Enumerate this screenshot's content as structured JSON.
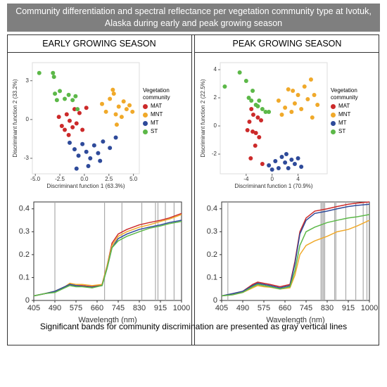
{
  "header": {
    "title": "Community differentiation and spectral reflectance per vegetation community type at Ivotuk, Alaska during early and peak growing season"
  },
  "footer": "Significant bands for community discrimination are presented as gray vertical lines",
  "chart_data": [
    {
      "type": "scatter",
      "title": "EARLY GROWING SEASON",
      "xlabel": "Discriminant function 1 (63.3%)",
      "ylabel": "Discriminant function 2 (33.2%)",
      "legend_title": "Vegetation community",
      "xlim": [
        -5.3,
        5.6
      ],
      "ylim": [
        -4.2,
        4.4
      ],
      "xticks": [
        {
          "value": -5,
          "label": "-5.0"
        },
        -2.5,
        {
          "value": 0,
          "label": "0.0"
        },
        2.5,
        {
          "value": 5,
          "label": "5.0"
        }
      ],
      "yticks": [
        -3,
        0,
        3
      ],
      "series": [
        {
          "name": "MAT",
          "color": "#cc2a2a",
          "x": [
            -2.6,
            -2.3,
            -2.0,
            -1.8,
            -1.5,
            -1.2,
            -1.0,
            -0.8,
            -0.5,
            -0.2,
            0.2,
            -1.6
          ],
          "y": [
            0.2,
            -0.5,
            -0.8,
            0.4,
            -0.1,
            -0.6,
            0.8,
            -0.3,
            0.5,
            -0.8,
            0.9,
            -1.2
          ]
        },
        {
          "name": "MNT",
          "color": "#f0a92a",
          "x": [
            1.8,
            2.2,
            2.6,
            3.0,
            3.2,
            3.5,
            3.8,
            4.0,
            4.3,
            4.6,
            4.9,
            2.9,
            3.3
          ],
          "y": [
            1.2,
            0.6,
            1.6,
            2.0,
            0.4,
            1.0,
            0.2,
            1.4,
            0.8,
            1.1,
            0.6,
            2.3,
            -0.4
          ]
        },
        {
          "name": "MT",
          "color": "#2e4a9a",
          "x": [
            -1.5,
            -1.0,
            -0.6,
            -0.2,
            0.2,
            0.6,
            1.0,
            1.4,
            1.9,
            2.6,
            3.2,
            -0.8,
            0.4,
            1.6
          ],
          "y": [
            -1.8,
            -2.3,
            -2.8,
            -1.9,
            -2.5,
            -3.0,
            -2.0,
            -2.6,
            -1.7,
            -2.2,
            -1.4,
            -3.8,
            -3.6,
            -3.2
          ]
        },
        {
          "name": "ST",
          "color": "#5cb848",
          "x": [
            -4.6,
            -3.2,
            -3.1,
            -3.0,
            -2.8,
            -2.5,
            -2.0,
            -1.6,
            -1.2,
            -0.9,
            -0.7
          ],
          "y": [
            3.6,
            3.6,
            3.3,
            2.0,
            1.5,
            2.2,
            1.6,
            1.9,
            1.5,
            1.8,
            0.8
          ]
        }
      ]
    },
    {
      "type": "scatter",
      "title": "PEAK GROWING SEASON",
      "xlabel": "Discriminant function 1 (70.9%)",
      "ylabel": "Discriminant function 2 (22.5%)",
      "legend_title": "Vegetation community",
      "xlim": [
        -8,
        8.5
      ],
      "ylim": [
        -3.4,
        4.5
      ],
      "xticks": [
        -4,
        0,
        4
      ],
      "yticks": [
        -2,
        0,
        2,
        4
      ],
      "series": [
        {
          "name": "MAT",
          "color": "#cc2a2a",
          "x": [
            -3.8,
            -3.5,
            -3.2,
            -2.9,
            -2.5,
            -2.2,
            -2.0,
            -1.7,
            -3.3,
            -2.6,
            -1.5,
            -3.0
          ],
          "y": [
            -0.3,
            0.3,
            1.2,
            0.8,
            -0.5,
            0.6,
            -0.8,
            0.4,
            -2.3,
            -1.4,
            -2.7,
            -0.4
          ]
        },
        {
          "name": "MNT",
          "color": "#f0a92a",
          "x": [
            1.0,
            1.5,
            2.0,
            2.5,
            3.0,
            3.5,
            4.0,
            4.5,
            5.0,
            5.5,
            6.0,
            6.5,
            7.0,
            3.2,
            6.2
          ],
          "y": [
            1.8,
            0.8,
            1.3,
            2.6,
            1.0,
            1.6,
            2.2,
            1.2,
            2.8,
            1.9,
            3.3,
            2.2,
            1.5,
            2.5,
            0.6
          ]
        },
        {
          "name": "MT",
          "color": "#2e4a9a",
          "x": [
            -0.5,
            0.5,
            1.0,
            1.5,
            2.0,
            2.5,
            3.0,
            3.5,
            4.0,
            4.5,
            0.0,
            2.2
          ],
          "y": [
            -2.8,
            -2.5,
            -3.0,
            -2.2,
            -2.6,
            -3.0,
            -2.4,
            -2.7,
            -2.3,
            -2.9,
            -3.1,
            -2.0
          ]
        },
        {
          "name": "ST",
          "color": "#5cb848",
          "x": [
            -7.3,
            -5.0,
            -4.0,
            -3.6,
            -3.0,
            -2.5,
            -2.0,
            -1.5,
            -1.0,
            -0.5,
            -3.2,
            -2.2
          ],
          "y": [
            2.8,
            3.8,
            3.2,
            2.0,
            2.5,
            1.5,
            1.8,
            1.2,
            1.0,
            1.0,
            1.8,
            1.4
          ]
        }
      ]
    },
    {
      "type": "line",
      "xlabel": "Wavelength (nm)",
      "xlim": [
        405,
        1000
      ],
      "ylim": [
        0,
        0.43
      ],
      "xticks": [
        405,
        490,
        575,
        660,
        745,
        830,
        915,
        1000
      ],
      "yticks": [
        0,
        0.1,
        0.2,
        0.3,
        0.4
      ],
      "bands": [
        490,
        690,
        760,
        840,
        895,
        905,
        935,
        970
      ],
      "band_color": "#aaaaaa",
      "x": [
        405,
        450,
        490,
        530,
        550,
        575,
        600,
        640,
        680,
        700,
        720,
        745,
        780,
        830,
        870,
        915,
        950,
        1000
      ],
      "series": [
        {
          "color": "#cc2a2a",
          "values": [
            0.02,
            0.03,
            0.04,
            0.06,
            0.07,
            0.065,
            0.065,
            0.06,
            0.07,
            0.15,
            0.25,
            0.29,
            0.31,
            0.33,
            0.34,
            0.35,
            0.36,
            0.38
          ]
        },
        {
          "color": "#f0a92a",
          "values": [
            0.02,
            0.03,
            0.04,
            0.06,
            0.075,
            0.07,
            0.07,
            0.065,
            0.07,
            0.15,
            0.24,
            0.28,
            0.3,
            0.32,
            0.33,
            0.345,
            0.355,
            0.375
          ]
        },
        {
          "color": "#2e4a9a",
          "values": [
            0.02,
            0.03,
            0.04,
            0.06,
            0.07,
            0.065,
            0.062,
            0.058,
            0.065,
            0.14,
            0.23,
            0.27,
            0.29,
            0.31,
            0.32,
            0.33,
            0.34,
            0.35
          ]
        },
        {
          "color": "#5cb848",
          "values": [
            0.02,
            0.03,
            0.035,
            0.055,
            0.065,
            0.06,
            0.06,
            0.055,
            0.065,
            0.14,
            0.23,
            0.26,
            0.28,
            0.3,
            0.315,
            0.325,
            0.335,
            0.345
          ]
        }
      ]
    },
    {
      "type": "line",
      "xlabel": "Wavelength (nm)",
      "xlim": [
        405,
        1000
      ],
      "ylim": [
        0,
        0.43
      ],
      "xticks": [
        405,
        490,
        575,
        660,
        745,
        830,
        915,
        1000
      ],
      "yticks": [
        0,
        0.1,
        0.2,
        0.3,
        0.4
      ],
      "bands": [
        430,
        805,
        810,
        815,
        820,
        860,
        865,
        905,
        945,
        975,
        990
      ],
      "band_color": "#aaaaaa",
      "x": [
        405,
        450,
        490,
        530,
        550,
        575,
        600,
        640,
        680,
        700,
        720,
        745,
        780,
        830,
        870,
        915,
        950,
        1000
      ],
      "series": [
        {
          "color": "#cc2a2a",
          "values": [
            0.02,
            0.03,
            0.04,
            0.07,
            0.08,
            0.075,
            0.07,
            0.06,
            0.07,
            0.17,
            0.3,
            0.36,
            0.39,
            0.4,
            0.41,
            0.42,
            0.425,
            0.43
          ]
        },
        {
          "color": "#f0a92a",
          "values": [
            0.02,
            0.025,
            0.035,
            0.055,
            0.065,
            0.06,
            0.058,
            0.05,
            0.055,
            0.11,
            0.2,
            0.24,
            0.26,
            0.28,
            0.3,
            0.31,
            0.325,
            0.35
          ]
        },
        {
          "color": "#2e4a9a",
          "values": [
            0.02,
            0.03,
            0.04,
            0.065,
            0.075,
            0.07,
            0.065,
            0.055,
            0.065,
            0.16,
            0.29,
            0.35,
            0.38,
            0.39,
            0.4,
            0.41,
            0.415,
            0.42
          ]
        },
        {
          "color": "#5cb848",
          "values": [
            0.02,
            0.025,
            0.035,
            0.06,
            0.07,
            0.065,
            0.06,
            0.05,
            0.06,
            0.13,
            0.24,
            0.3,
            0.32,
            0.34,
            0.35,
            0.36,
            0.365,
            0.375
          ]
        }
      ]
    }
  ]
}
